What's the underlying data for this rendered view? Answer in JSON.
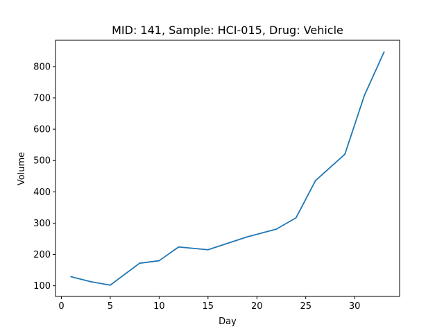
{
  "chart_data": {
    "type": "line",
    "title": "MID: 141, Sample: HCI-015, Drug: Vehicle",
    "xlabel": "Day",
    "ylabel": "Volume",
    "xlim": [
      -0.6,
      34.6
    ],
    "ylim": [
      66,
      884
    ],
    "xticks": [
      0,
      5,
      10,
      15,
      20,
      25,
      30
    ],
    "yticks": [
      100,
      200,
      300,
      400,
      500,
      600,
      700,
      800
    ],
    "grid": false,
    "legend": "none",
    "series": [
      {
        "color": "#1f77b4",
        "x": [
          1,
          3,
          5,
          8,
          10,
          12,
          15,
          19,
          22,
          24,
          26,
          29,
          31,
          33
        ],
        "y": [
          129,
          113,
          102,
          172,
          180,
          224,
          215,
          256,
          281,
          317,
          436,
          520,
          708,
          846
        ]
      }
    ]
  }
}
